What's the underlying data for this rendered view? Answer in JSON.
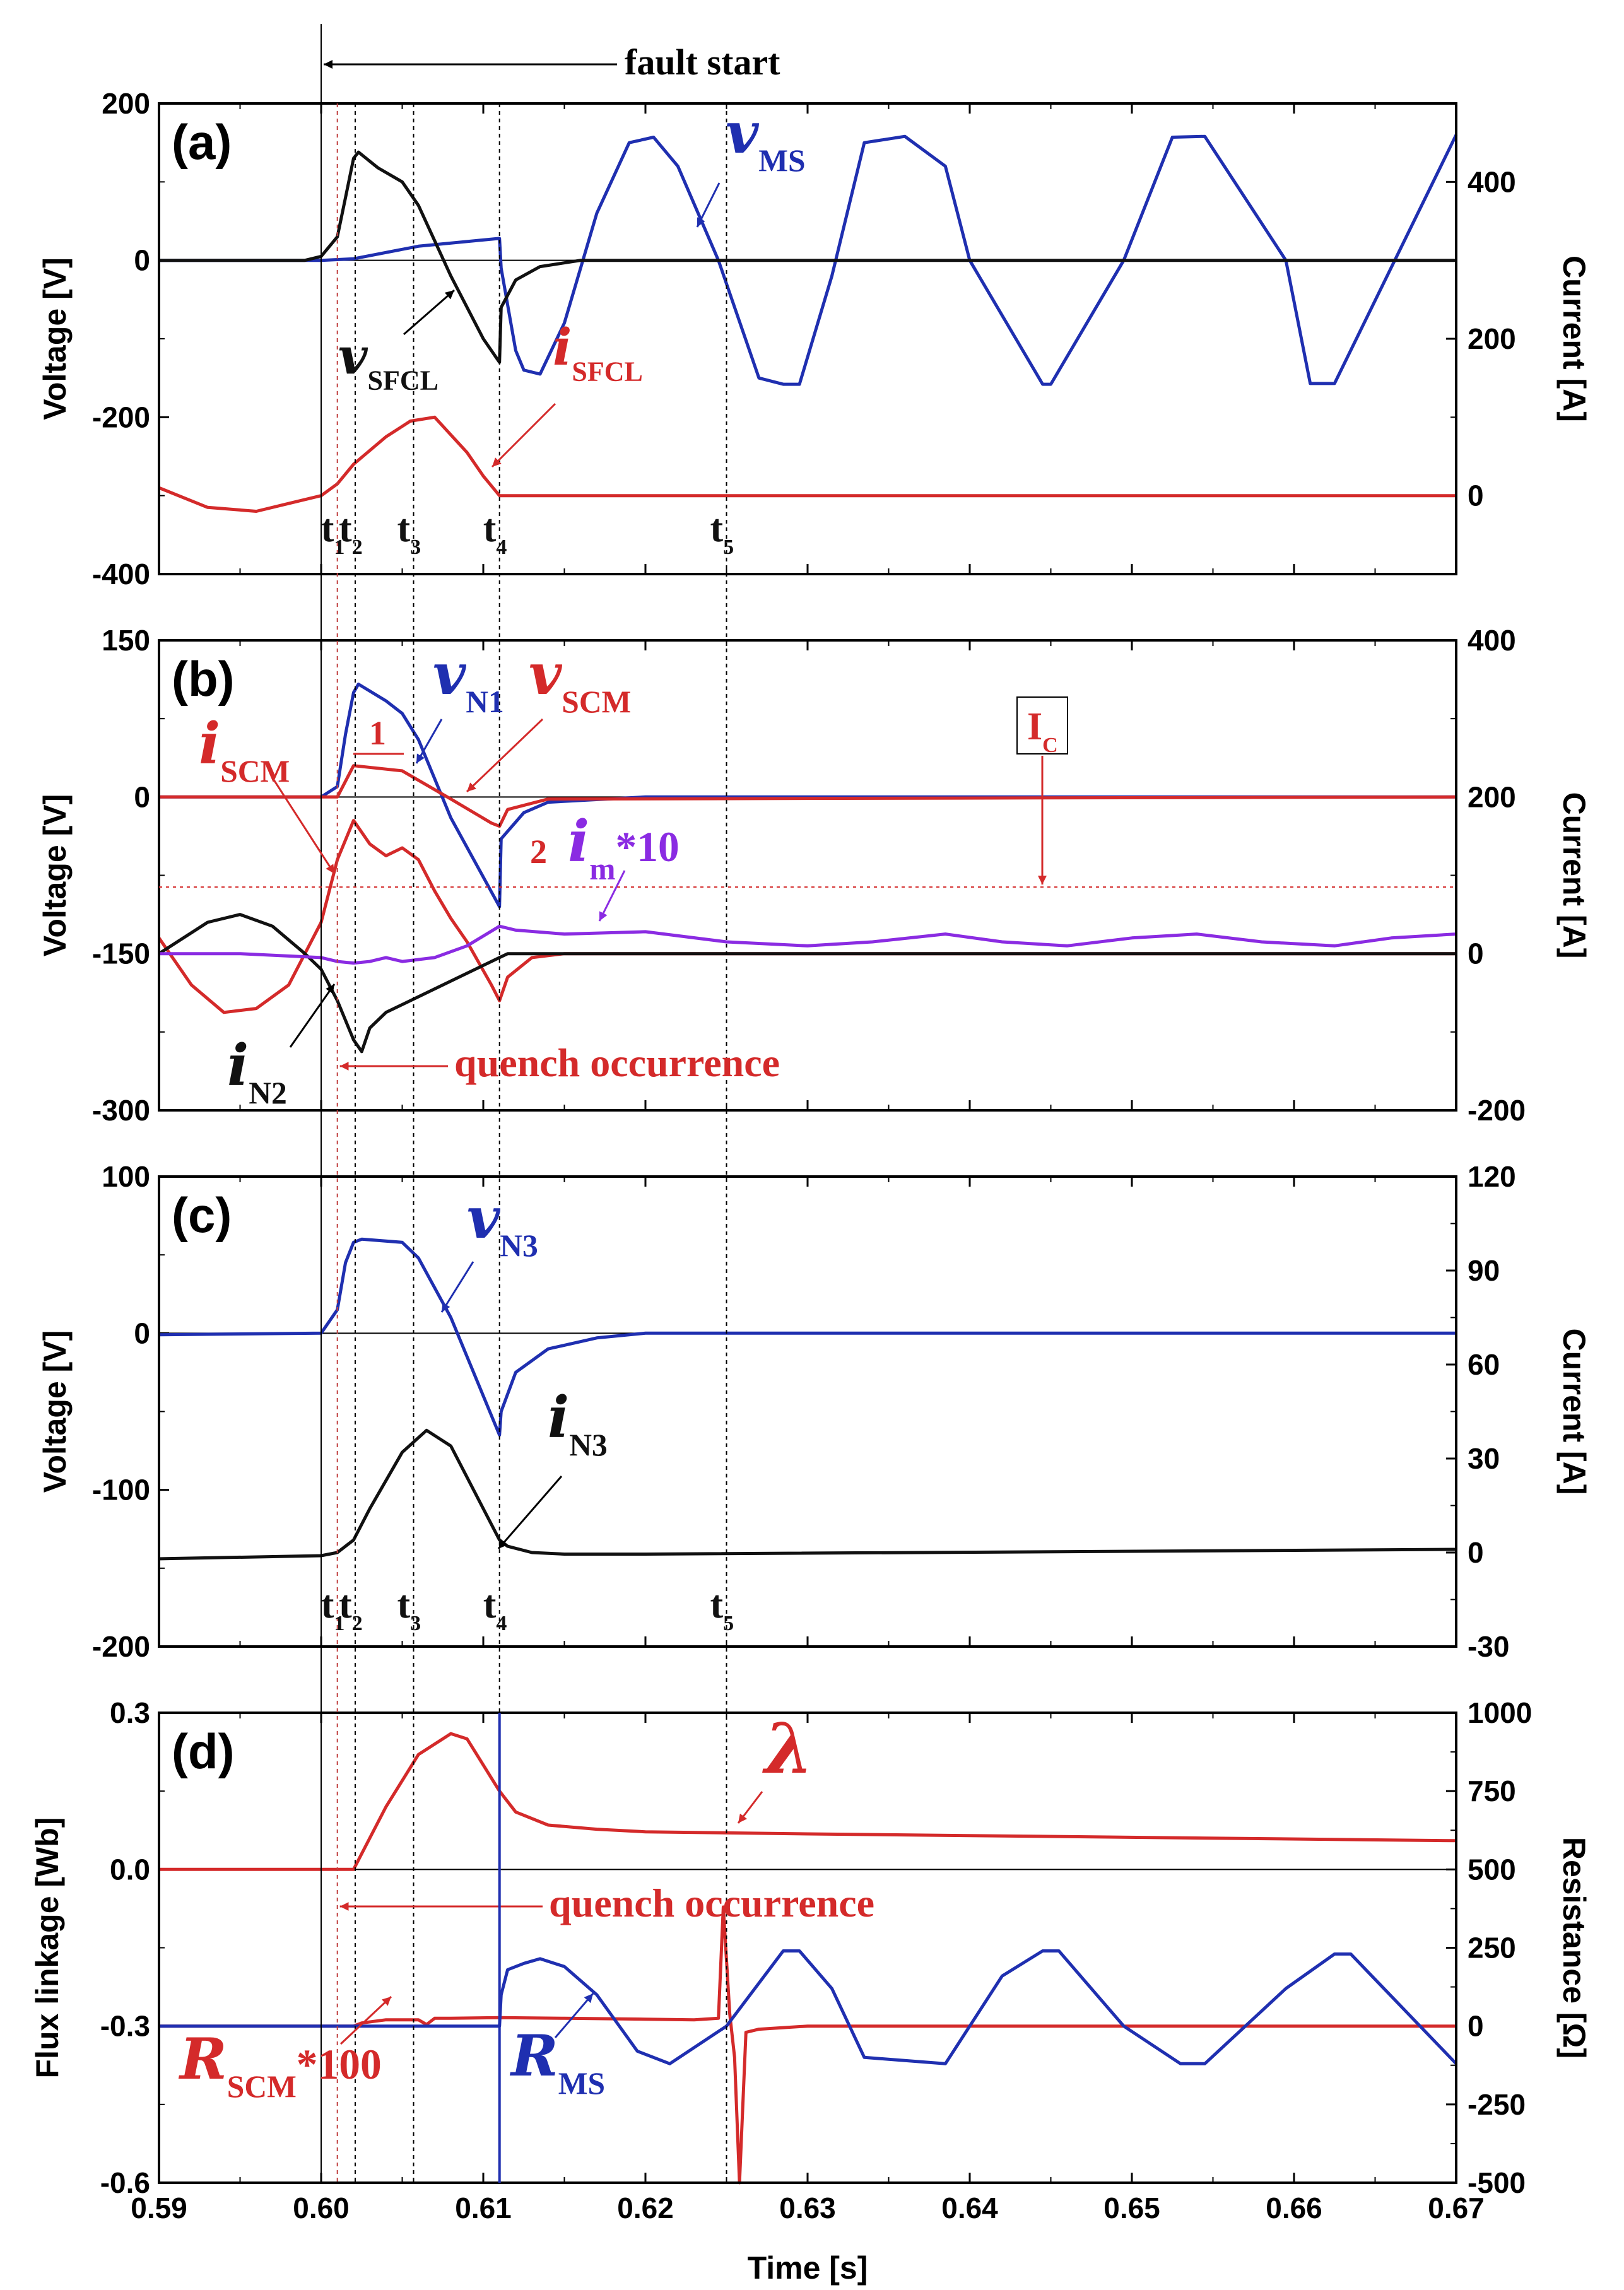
{
  "figure": {
    "xlabel": "Time [s]",
    "fault_start": "fault start",
    "quench_label": "quench occurrence",
    "colors": {
      "black": "#111111",
      "red": "#d42a2a",
      "blue": "#1f2fb0",
      "purple": "#8a2be2"
    }
  },
  "chart_data": [
    {
      "id": "a",
      "type": "line",
      "panel_label": "(a)",
      "ylabel": "Voltage [V]",
      "y2label": "Current [A]",
      "xlim": [
        0.59,
        0.67
      ],
      "ylim": [
        -400,
        200
      ],
      "y2lim": [
        -100,
        500
      ],
      "xticks": [
        0.59,
        0.6,
        0.61,
        0.62,
        0.63,
        0.64,
        0.65,
        0.66,
        0.67
      ],
      "yticks": [
        -400,
        -200,
        0,
        200
      ],
      "y2ticks": [
        0,
        200,
        400
      ],
      "time_markers": [
        {
          "t": "t",
          "sub": "1",
          "x": 0.601
        },
        {
          "t": "t",
          "sub": "2",
          "x": 0.6021
        },
        {
          "t": "t",
          "sub": "3",
          "x": 0.6057
        },
        {
          "t": "t",
          "sub": "4",
          "x": 0.611
        },
        {
          "t": "t",
          "sub": "5",
          "x": 0.625
        }
      ],
      "series": [
        {
          "name": "v",
          "sub": "MS",
          "color": "blue",
          "axis": "left",
          "x": [
            0.59,
            0.6,
            0.602,
            0.606,
            0.611,
            0.6111,
            0.612,
            0.6125,
            0.6135,
            0.615,
            0.617,
            0.619,
            0.6205,
            0.622,
            0.6245,
            0.627,
            0.6285,
            0.6295,
            0.6315,
            0.6335,
            0.636,
            0.6385,
            0.64,
            0.6445,
            0.645,
            0.6495,
            0.6525,
            0.6545,
            0.6595,
            0.661,
            0.6625,
            0.67
          ],
          "y": [
            0,
            0,
            2,
            18,
            28,
            -10,
            -115,
            -140,
            -145,
            -80,
            60,
            150,
            157,
            120,
            0,
            -150,
            -158,
            -158,
            -20,
            150,
            158,
            120,
            0,
            -158,
            -158,
            0,
            157,
            158,
            0,
            -157,
            -157,
            160
          ]
        },
        {
          "name": "v",
          "sub": "SFCL",
          "color": "black",
          "axis": "left",
          "x": [
            0.59,
            0.599,
            0.6,
            0.601,
            0.6015,
            0.602,
            0.6023,
            0.6035,
            0.605,
            0.606,
            0.608,
            0.61,
            0.611,
            0.6111,
            0.612,
            0.6135,
            0.616,
            0.67
          ],
          "y": [
            0,
            0,
            5,
            30,
            80,
            130,
            138,
            118,
            100,
            70,
            -20,
            -100,
            -130,
            -60,
            -25,
            -8,
            0,
            0
          ]
        },
        {
          "name": "i",
          "sub": "SFCL",
          "color": "red",
          "axis": "right",
          "x": [
            0.59,
            0.593,
            0.596,
            0.598,
            0.6,
            0.601,
            0.602,
            0.604,
            0.6055,
            0.607,
            0.609,
            0.61,
            0.611,
            0.6112,
            0.67
          ],
          "y": [
            10,
            -15,
            -20,
            -10,
            0,
            15,
            40,
            75,
            95,
            100,
            55,
            25,
            0,
            0,
            0
          ]
        }
      ]
    },
    {
      "id": "b",
      "type": "line",
      "panel_label": "(b)",
      "ylabel": "Voltage [V]",
      "y2label": "Current [A]",
      "xlim": [
        0.59,
        0.67
      ],
      "ylim": [
        -300,
        150
      ],
      "y2lim": [
        -200,
        400
      ],
      "xticks": [
        0.59,
        0.6,
        0.61,
        0.62,
        0.63,
        0.64,
        0.65,
        0.66,
        0.67
      ],
      "yticks": [
        -300,
        -150,
        0,
        150
      ],
      "y2ticks": [
        -200,
        0,
        200,
        400
      ],
      "ic_level": 85,
      "ic_label": "I",
      "ic_sub": "C",
      "markers": [
        "1",
        "2"
      ],
      "series": [
        {
          "name": "v",
          "sub": "N1",
          "color": "blue",
          "axis": "left",
          "x": [
            0.59,
            0.6,
            0.601,
            0.6015,
            0.602,
            0.6023,
            0.604,
            0.605,
            0.606,
            0.608,
            0.611,
            0.6111,
            0.6125,
            0.614,
            0.62,
            0.67
          ],
          "y": [
            0,
            0,
            10,
            60,
            100,
            108,
            92,
            80,
            55,
            -20,
            -105,
            -40,
            -15,
            -5,
            0,
            0
          ]
        },
        {
          "name": "v",
          "sub": "SCM",
          "color": "red",
          "axis": "left",
          "x": [
            0.59,
            0.601,
            0.602,
            0.605,
            0.608,
            0.6105,
            0.611,
            0.6115,
            0.614,
            0.67
          ],
          "y": [
            0,
            0,
            30,
            25,
            -2,
            -25,
            -28,
            -12,
            -2,
            0
          ]
        },
        {
          "name": "i",
          "sub": "SCM",
          "color": "red",
          "axis": "right",
          "x": [
            0.59,
            0.592,
            0.594,
            0.596,
            0.598,
            0.6,
            0.601,
            0.602,
            0.603,
            0.604,
            0.605,
            0.606,
            0.607,
            0.608,
            0.609,
            0.6105,
            0.611,
            0.6115,
            0.613,
            0.615,
            0.67
          ],
          "y": [
            20,
            -40,
            -75,
            -70,
            -40,
            40,
            120,
            170,
            140,
            125,
            135,
            120,
            80,
            45,
            15,
            -40,
            -60,
            -30,
            -5,
            0,
            0
          ]
        },
        {
          "name": "i",
          "sub": "N2",
          "color": "black",
          "axis": "right",
          "x": [
            0.59,
            0.593,
            0.595,
            0.597,
            0.599,
            0.6,
            0.601,
            0.602,
            0.6025,
            0.603,
            0.604,
            0.606,
            0.608,
            0.61,
            0.611,
            0.6115,
            0.613,
            0.615,
            0.67
          ],
          "y": [
            0,
            40,
            50,
            35,
            0,
            -20,
            -60,
            -110,
            -125,
            -95,
            -75,
            -55,
            -35,
            -15,
            -5,
            0,
            0,
            0,
            0
          ]
        },
        {
          "name": "i",
          "sub": "m",
          "suffix": "*10",
          "color": "purple",
          "axis": "right",
          "x": [
            0.59,
            0.595,
            0.6,
            0.601,
            0.602,
            0.603,
            0.604,
            0.605,
            0.607,
            0.609,
            0.611,
            0.612,
            0.615,
            0.62,
            0.625,
            0.63,
            0.634,
            0.6385,
            0.642,
            0.646,
            0.65,
            0.654,
            0.658,
            0.6625,
            0.666,
            0.67
          ],
          "y": [
            0,
            0,
            -5,
            -10,
            -12,
            -10,
            -5,
            -10,
            -5,
            10,
            35,
            30,
            25,
            28,
            15,
            10,
            15,
            25,
            15,
            10,
            20,
            25,
            15,
            10,
            20,
            25
          ]
        }
      ]
    },
    {
      "id": "c",
      "type": "line",
      "panel_label": "(c)",
      "ylabel": "Voltage [V]",
      "y2label": "Current [A]",
      "xlim": [
        0.59,
        0.67
      ],
      "ylim": [
        -200,
        100
      ],
      "y2lim": [
        -30,
        120
      ],
      "xticks": [
        0.59,
        0.6,
        0.61,
        0.62,
        0.63,
        0.64,
        0.65,
        0.66,
        0.67
      ],
      "yticks": [
        -200,
        -100,
        0,
        100
      ],
      "y2ticks": [
        -30,
        0,
        30,
        60,
        90,
        120
      ],
      "time_markers": [
        {
          "t": "t",
          "sub": "1",
          "x": 0.601
        },
        {
          "t": "t",
          "sub": "2",
          "x": 0.6021
        },
        {
          "t": "t",
          "sub": "3",
          "x": 0.6057
        },
        {
          "t": "t",
          "sub": "4",
          "x": 0.611
        },
        {
          "t": "t",
          "sub": "5",
          "x": 0.625
        }
      ],
      "series": [
        {
          "name": "v",
          "sub": "N3",
          "color": "blue",
          "axis": "left",
          "x": [
            0.59,
            0.6,
            0.601,
            0.6015,
            0.602,
            0.6025,
            0.605,
            0.606,
            0.608,
            0.611,
            0.6111,
            0.612,
            0.614,
            0.617,
            0.62,
            0.67
          ],
          "y": [
            -1,
            0,
            15,
            45,
            58,
            60,
            58,
            48,
            10,
            -65,
            -50,
            -25,
            -10,
            -3,
            0,
            0
          ]
        },
        {
          "name": "i",
          "sub": "N3",
          "color": "black",
          "axis": "right",
          "x": [
            0.59,
            0.6,
            0.601,
            0.602,
            0.603,
            0.605,
            0.6065,
            0.608,
            0.61,
            0.611,
            0.6115,
            0.613,
            0.615,
            0.62,
            0.67
          ],
          "y": [
            -2,
            -1,
            0,
            4,
            14,
            32,
            39,
            34,
            14,
            4,
            2,
            0,
            -0.5,
            -0.5,
            1
          ]
        }
      ]
    },
    {
      "id": "d",
      "type": "line",
      "panel_label": "(d)",
      "ylabel": "Flux linkage [Wb]",
      "y2label": "Resistance [Ω]",
      "xlim": [
        0.59,
        0.67
      ],
      "ylim": [
        -0.6,
        0.3
      ],
      "y2lim": [
        -500,
        1000
      ],
      "xticks": [
        0.59,
        0.6,
        0.61,
        0.62,
        0.63,
        0.64,
        0.65,
        0.66,
        0.67
      ],
      "yticks": [
        -0.6,
        -0.3,
        0.0,
        0.3
      ],
      "y2ticks": [
        -500,
        -250,
        0,
        250,
        500,
        750,
        1000
      ],
      "series": [
        {
          "name": "λ",
          "color": "red",
          "axis": "left",
          "x": [
            0.59,
            0.602,
            0.604,
            0.606,
            0.608,
            0.609,
            0.611,
            0.612,
            0.614,
            0.617,
            0.62,
            0.625,
            0.63,
            0.67
          ],
          "y": [
            0,
            0,
            0.12,
            0.22,
            0.26,
            0.25,
            0.15,
            0.11,
            0.085,
            0.077,
            0.072,
            0.07,
            0.068,
            0.055
          ]
        },
        {
          "name": "R",
          "sub": "SCM",
          "suffix": "*100",
          "color": "red",
          "axis": "right",
          "x": [
            0.59,
            0.602,
            0.6025,
            0.604,
            0.606,
            0.6065,
            0.607,
            0.608,
            0.611,
            0.615,
            0.62,
            0.623,
            0.6245,
            0.6248,
            0.6252,
            0.6255,
            0.6258,
            0.6262,
            0.627,
            0.63,
            0.67
          ],
          "y": [
            0,
            0,
            10,
            20,
            20,
            5,
            25,
            25,
            27,
            25,
            22,
            20,
            25,
            380,
            40,
            -100,
            -500,
            -20,
            -10,
            0,
            0
          ]
        },
        {
          "name": "R",
          "sub": "MS",
          "color": "blue",
          "axis": "right",
          "x": [
            0.59,
            0.611,
            0.6111,
            0.6115,
            0.6125,
            0.6135,
            0.615,
            0.617,
            0.6195,
            0.6215,
            0.625,
            0.6285,
            0.6295,
            0.6315,
            0.6335,
            0.6385,
            0.64,
            0.642,
            0.6445,
            0.6455,
            0.6495,
            0.653,
            0.6545,
            0.6595,
            0.6625,
            0.6635,
            0.67
          ],
          "y": [
            0,
            0,
            100,
            180,
            200,
            215,
            190,
            100,
            -80,
            -120,
            0,
            240,
            240,
            120,
            -100,
            -120,
            0,
            160,
            240,
            240,
            0,
            -120,
            -120,
            120,
            230,
            230,
            -120
          ]
        }
      ]
    }
  ]
}
